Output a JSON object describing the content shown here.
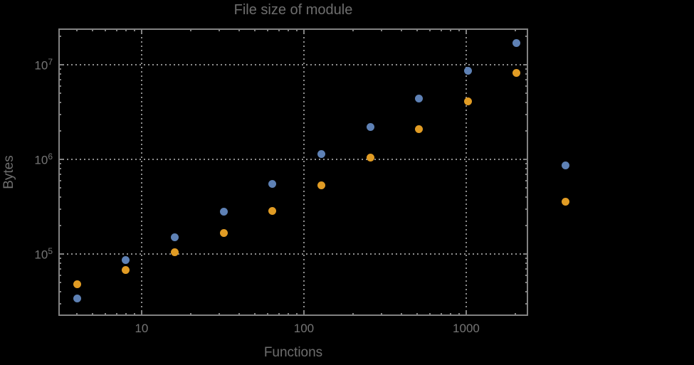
{
  "title": "File size of module",
  "colors": {
    "background": "#000000",
    "frame": "#828282",
    "grid": "#8e8e8e",
    "title_text": "#6e6e6e",
    "tick_text": "#757575",
    "series_blue": "#5e81b5",
    "series_orange": "#e19c24"
  },
  "chart_data": {
    "type": "scatter",
    "title": "File size of module",
    "xlabel": "Functions",
    "ylabel": "Bytes",
    "x_scale": "log",
    "y_scale": "log",
    "grid": "dotted",
    "legend": "none",
    "x_range": [
      3.07,
      2408
    ],
    "y_range": [
      22200,
      24200000
    ],
    "x": [
      4,
      8,
      16,
      32,
      64,
      128,
      256,
      512,
      1024,
      2048,
      4096
    ],
    "series": [
      {
        "name": "blue",
        "color": "#5e81b5",
        "values": [
          34000,
          86000,
          150000,
          280000,
          550000,
          1130000,
          2200000,
          4400000,
          8650000,
          17000000,
          860000
        ]
      },
      {
        "name": "orange",
        "color": "#e19c24",
        "values": [
          48000,
          68000,
          104000,
          166000,
          285000,
          530000,
          1050000,
          2080000,
          4100000,
          8200000,
          360000
        ]
      }
    ],
    "x_major_ticks": [
      {
        "value": 10,
        "label": "10"
      },
      {
        "value": 100,
        "label": "100"
      },
      {
        "value": 1000,
        "label": "1000"
      }
    ],
    "y_major_ticks": [
      {
        "value": 100000,
        "label": "10^5"
      },
      {
        "value": 1000000,
        "label": "10^6"
      },
      {
        "value": 10000000,
        "label": "10^7"
      }
    ]
  }
}
